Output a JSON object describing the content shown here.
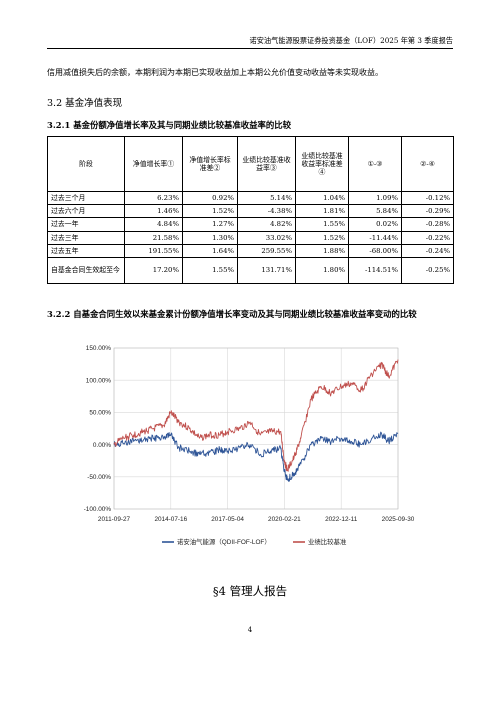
{
  "header": {
    "title": "诺安油气能源股票证券投资基金（LOF）2025 年第 3 季度报告"
  },
  "intro_text": "信用减值损失后的余额，本期利润为本期已实现收益加上本期公允价值变动收益等未实现收益。",
  "section_3_2": {
    "title": "3.2 基金净值表现"
  },
  "section_3_2_1": {
    "title": "3.2.1 基金份额净值增长率及其与同期业绩比较基准收益率的比较"
  },
  "performance_table": {
    "headers": [
      "阶段",
      "净值增长率①",
      "净值增长率标准差②",
      "业绩比较基准收益率③",
      "业绩比较基准收益率标准差④",
      "①-③",
      "②-④"
    ],
    "rows": [
      [
        "过去三个月",
        "6.23%",
        "0.92%",
        "5.14%",
        "1.04%",
        "1.09%",
        "-0.12%"
      ],
      [
        "过去六个月",
        "1.46%",
        "1.52%",
        "-4.38%",
        "1.81%",
        "5.84%",
        "-0.29%"
      ],
      [
        "过去一年",
        "4.84%",
        "1.27%",
        "4.82%",
        "1.55%",
        "0.02%",
        "-0.28%"
      ],
      [
        "过去三年",
        "21.58%",
        "1.30%",
        "33.02%",
        "1.52%",
        "-11.44%",
        "-0.22%"
      ],
      [
        "过去五年",
        "191.55%",
        "1.64%",
        "259.55%",
        "1.88%",
        "-68.00%",
        "-0.24%"
      ],
      [
        "自基金合同生效起至今",
        "17.20%",
        "1.55%",
        "131.71%",
        "1.80%",
        "-114.51%",
        "-0.25%"
      ]
    ]
  },
  "section_3_2_2": {
    "title": "3.2.2 自基金合同生效以来基金累计份额净值增长率变动及其与同期业绩比较基准收益率变动的比较"
  },
  "chart_data": {
    "type": "line",
    "x_tick_labels": [
      "2011-09-27",
      "2014-07-16",
      "2017-05-04",
      "2020-02-21",
      "2022-12-11",
      "2025-09-30"
    ],
    "y_tick_labels": [
      "150.00%",
      "100.00%",
      "50.00%",
      "0.00%",
      "-50.00%",
      "-100.00%"
    ],
    "ylim": [
      -100,
      150
    ],
    "grid": true,
    "legend_position": "bottom",
    "x_dates": [
      "2011-09-27",
      "2012-03",
      "2012-09",
      "2013-03",
      "2013-09",
      "2014-03",
      "2014-07-16",
      "2014-12",
      "2015-06",
      "2015-12",
      "2016-06",
      "2016-12",
      "2017-05-04",
      "2017-12",
      "2018-06",
      "2018-12",
      "2019-06",
      "2019-12",
      "2020-02-21",
      "2020-04",
      "2020-08",
      "2020-12",
      "2021-06",
      "2021-12",
      "2022-06",
      "2022-12-11",
      "2023-06",
      "2023-12",
      "2024-06",
      "2024-12",
      "2025-04",
      "2025-09-30"
    ],
    "series": [
      {
        "name": "诺安油气能源（QDII-FOF-LOF）",
        "color": "#2f5597",
        "values": [
          0,
          2,
          5,
          8,
          10,
          12,
          14,
          -5,
          -10,
          -15,
          -12,
          -8,
          -10,
          -5,
          0,
          -15,
          -10,
          -5,
          -40,
          -55,
          -45,
          -30,
          0,
          10,
          5,
          10,
          5,
          0,
          10,
          15,
          5,
          17
        ]
      },
      {
        "name": "业绩比较基准",
        "color": "#c0504d",
        "values": [
          0,
          10,
          15,
          20,
          25,
          30,
          50,
          35,
          25,
          10,
          15,
          15,
          20,
          25,
          35,
          15,
          20,
          20,
          -25,
          -40,
          -20,
          10,
          70,
          90,
          80,
          90,
          95,
          85,
          110,
          125,
          105,
          132
        ]
      }
    ]
  },
  "section_4": {
    "title": "§4  管理人报告"
  },
  "page_number": "4"
}
